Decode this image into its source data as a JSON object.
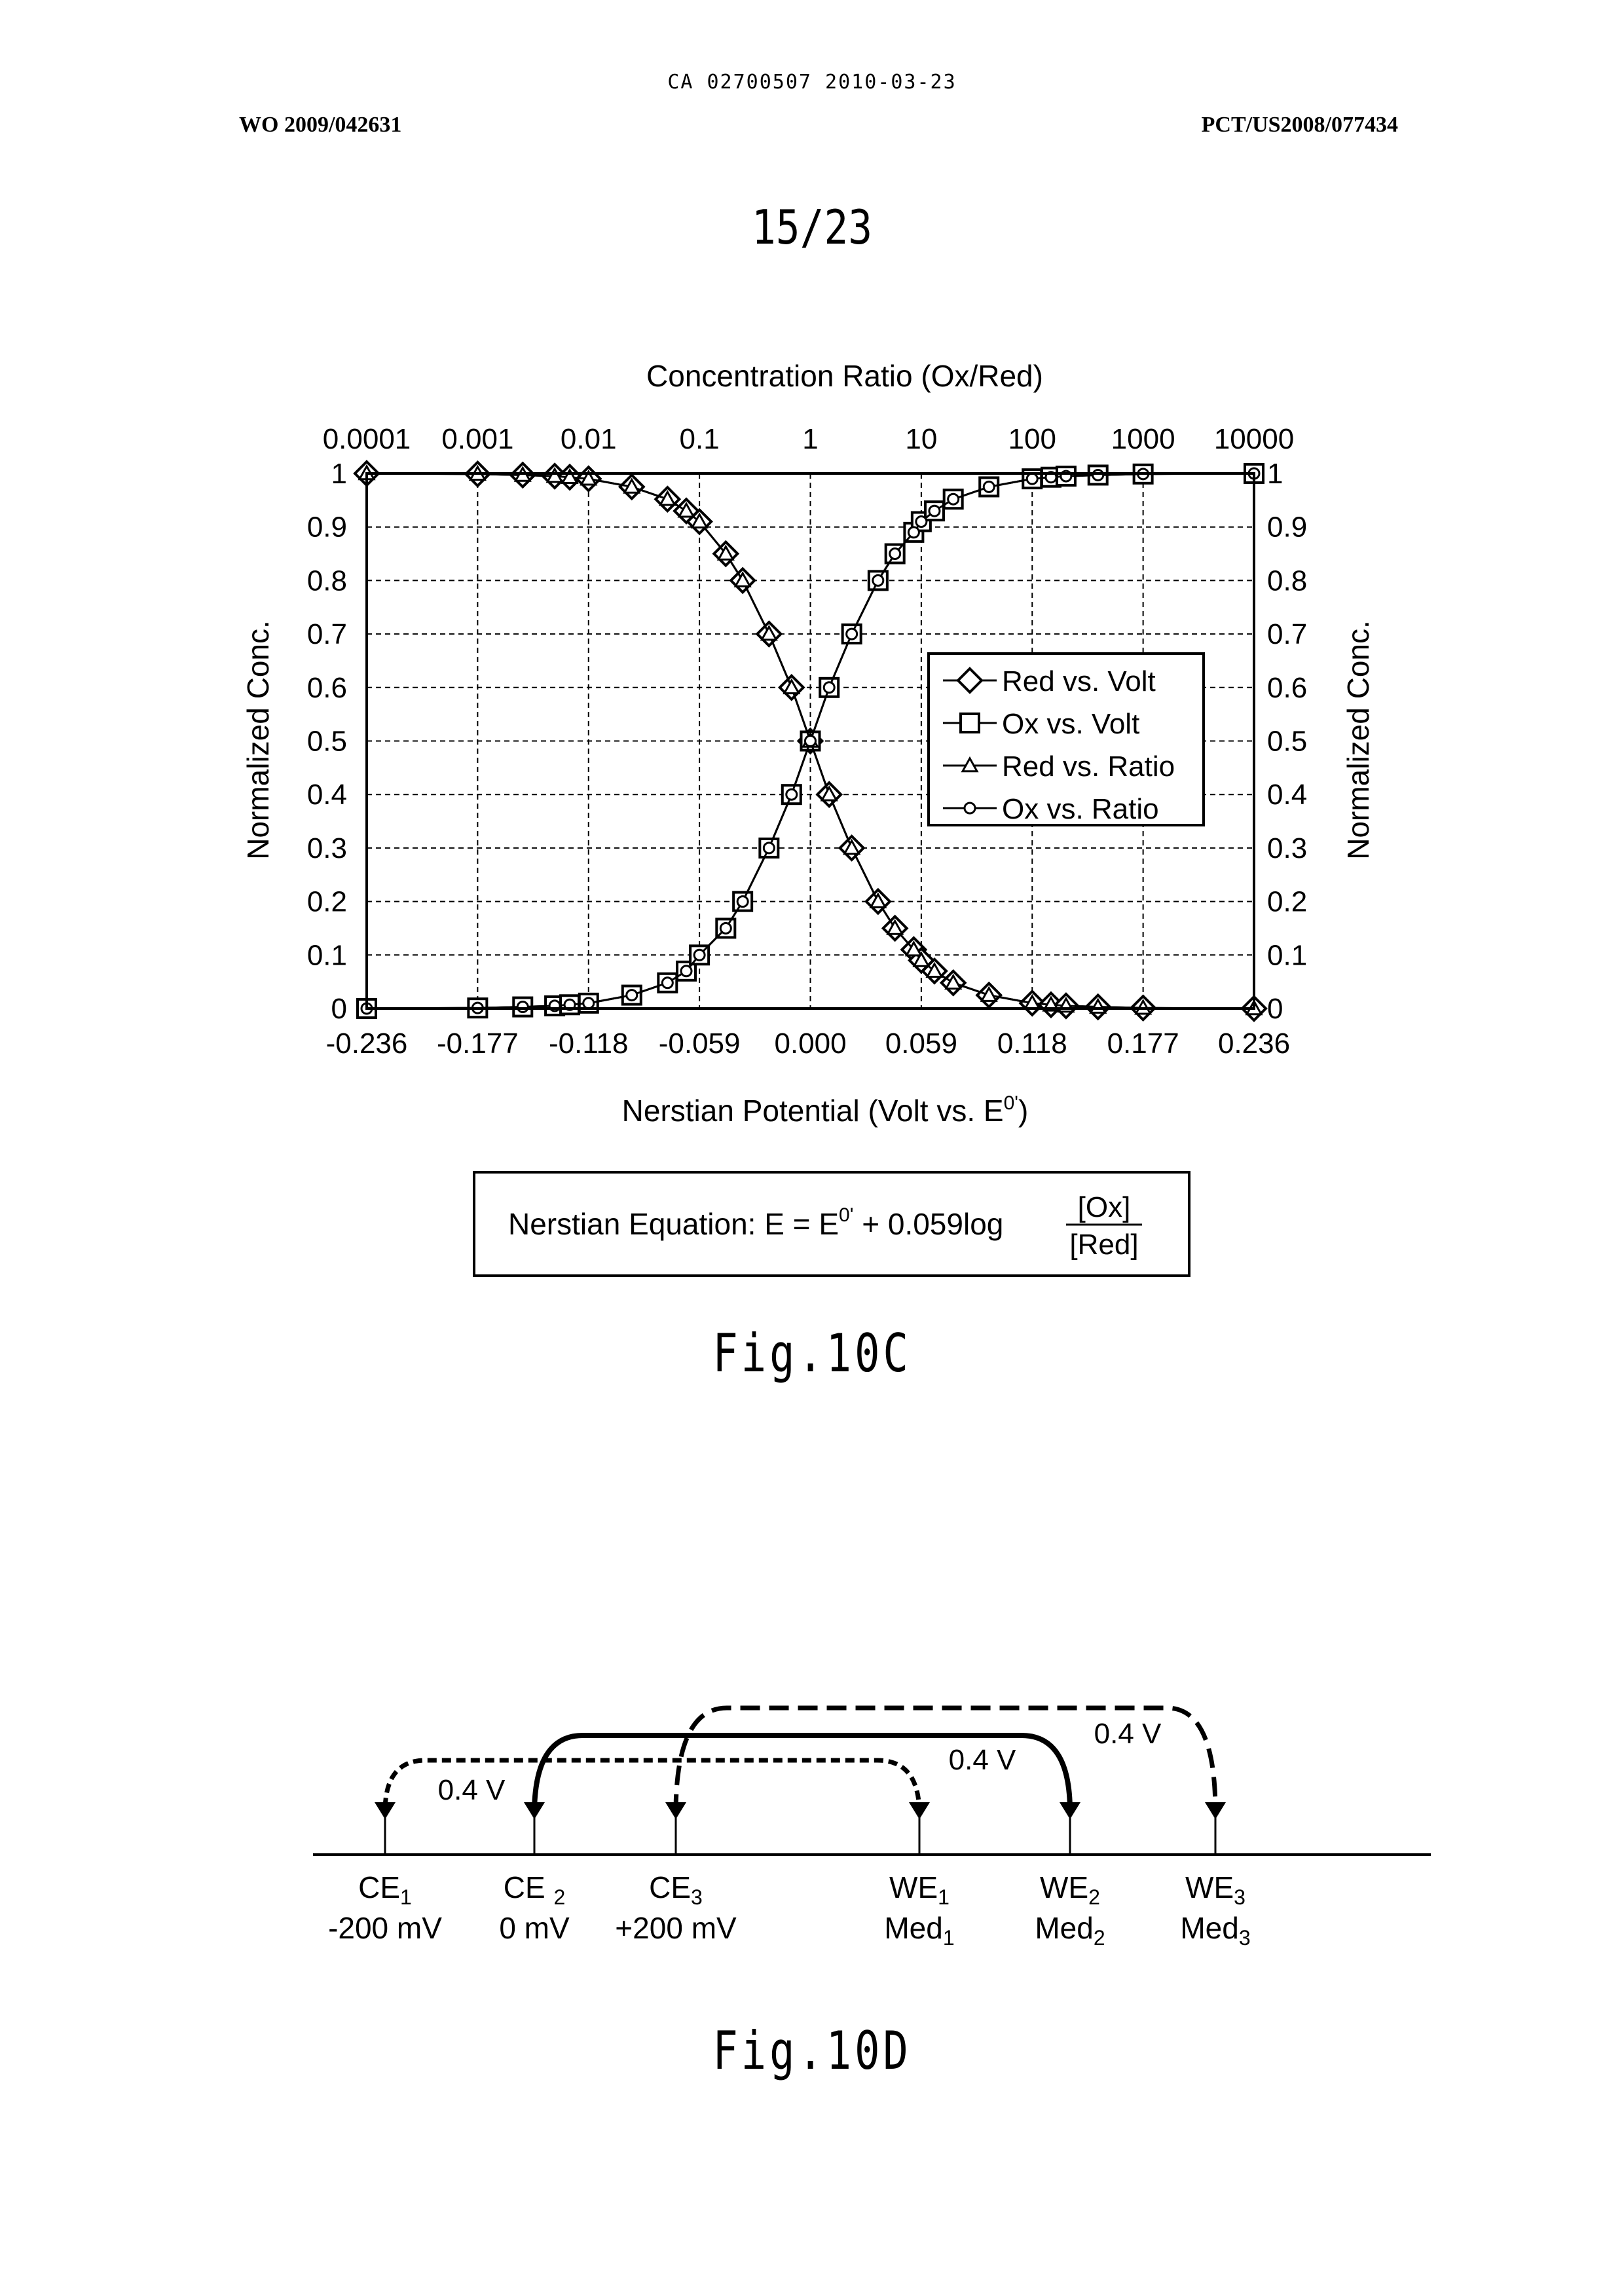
{
  "header": {
    "doc_id": "CA 02700507 2010-03-23",
    "left": "WO 2009/042631",
    "right": "PCT/US2008/077434",
    "page": "15/23"
  },
  "fig10c": {
    "label": "Fig.10C",
    "equation": {
      "prefix": "Nerstian Equation: E = E",
      "superscript": "0'",
      "middle": " + 0.059log",
      "numerator": "[Ox]",
      "denominator": "[Red]"
    }
  },
  "chart_data": {
    "type": "line",
    "title": "",
    "top_axis_label": "Concentration Ratio (Ox/Red)",
    "top_axis_scale": "log",
    "top_ticks": [
      "0.0001",
      "0.001",
      "0.01",
      "0.1",
      "1",
      "10",
      "100",
      "1000",
      "10000"
    ],
    "xlabel": "Nerstian Potential (Volt vs. E",
    "xlabel_superscript": "0'",
    "xlabel_suffix": ")",
    "x_ticks": [
      "-0.236",
      "-0.177",
      "-0.118",
      "-0.059",
      "0.000",
      "0.059",
      "0.118",
      "0.177",
      "0.236"
    ],
    "xlim": [
      -0.236,
      0.236
    ],
    "ylabel": "Normalized Conc.",
    "y2label": "Normalized Conc.",
    "y_ticks": [
      "0",
      "0.1",
      "0.2",
      "0.3",
      "0.4",
      "0.5",
      "0.6",
      "0.7",
      "0.8",
      "0.9",
      "1"
    ],
    "ylim": [
      0,
      1
    ],
    "grid": true,
    "legend_position": "right-center",
    "series": [
      {
        "name": "Red vs. Volt",
        "marker": "diamond",
        "x": [
          -0.236,
          -0.177,
          -0.153,
          -0.136,
          -0.128,
          -0.118,
          -0.095,
          -0.076,
          -0.066,
          -0.059,
          -0.045,
          -0.036,
          -0.022,
          -0.01,
          0.0,
          0.01,
          0.022,
          0.036,
          0.045,
          0.055,
          0.059,
          0.066,
          0.076,
          0.095,
          0.118,
          0.128,
          0.136,
          0.153,
          0.177,
          0.236
        ],
        "y": [
          1.0,
          0.999,
          0.997,
          0.995,
          0.993,
          0.99,
          0.975,
          0.952,
          0.93,
          0.91,
          0.85,
          0.8,
          0.7,
          0.6,
          0.5,
          0.4,
          0.3,
          0.2,
          0.15,
          0.11,
          0.09,
          0.07,
          0.048,
          0.025,
          0.01,
          0.007,
          0.005,
          0.003,
          0.001,
          0.0
        ]
      },
      {
        "name": "Ox vs. Volt",
        "marker": "square",
        "x": [
          -0.236,
          -0.177,
          -0.153,
          -0.136,
          -0.128,
          -0.118,
          -0.095,
          -0.076,
          -0.066,
          -0.059,
          -0.045,
          -0.036,
          -0.022,
          -0.01,
          0.0,
          0.01,
          0.022,
          0.036,
          0.045,
          0.055,
          0.059,
          0.066,
          0.076,
          0.095,
          0.118,
          0.128,
          0.136,
          0.153,
          0.177,
          0.236
        ],
        "y": [
          0.0,
          0.001,
          0.003,
          0.005,
          0.007,
          0.01,
          0.025,
          0.048,
          0.07,
          0.1,
          0.15,
          0.2,
          0.3,
          0.4,
          0.5,
          0.6,
          0.7,
          0.8,
          0.85,
          0.89,
          0.91,
          0.93,
          0.952,
          0.975,
          0.99,
          0.993,
          0.995,
          0.997,
          0.999,
          1.0
        ]
      },
      {
        "name": "Red vs. Ratio",
        "marker": "triangle",
        "x": [
          -0.236,
          -0.177,
          -0.153,
          -0.136,
          -0.128,
          -0.118,
          -0.095,
          -0.076,
          -0.066,
          -0.059,
          -0.045,
          -0.036,
          -0.022,
          -0.01,
          0.0,
          0.01,
          0.022,
          0.036,
          0.045,
          0.055,
          0.059,
          0.066,
          0.076,
          0.095,
          0.118,
          0.128,
          0.136,
          0.153,
          0.177,
          0.236
        ],
        "y": [
          1.0,
          0.999,
          0.997,
          0.995,
          0.993,
          0.99,
          0.975,
          0.952,
          0.93,
          0.91,
          0.85,
          0.8,
          0.7,
          0.6,
          0.5,
          0.4,
          0.3,
          0.2,
          0.15,
          0.11,
          0.09,
          0.07,
          0.048,
          0.025,
          0.01,
          0.007,
          0.005,
          0.003,
          0.001,
          0.0
        ]
      },
      {
        "name": "Ox vs. Ratio",
        "marker": "circle",
        "x": [
          -0.236,
          -0.177,
          -0.153,
          -0.136,
          -0.128,
          -0.118,
          -0.095,
          -0.076,
          -0.066,
          -0.059,
          -0.045,
          -0.036,
          -0.022,
          -0.01,
          0.0,
          0.01,
          0.022,
          0.036,
          0.045,
          0.055,
          0.059,
          0.066,
          0.076,
          0.095,
          0.118,
          0.128,
          0.136,
          0.153,
          0.177,
          0.236
        ],
        "y": [
          0.0,
          0.001,
          0.003,
          0.005,
          0.007,
          0.01,
          0.025,
          0.048,
          0.07,
          0.1,
          0.15,
          0.2,
          0.3,
          0.4,
          0.5,
          0.6,
          0.7,
          0.8,
          0.85,
          0.89,
          0.91,
          0.93,
          0.952,
          0.975,
          0.99,
          0.993,
          0.995,
          0.997,
          0.999,
          1.0
        ]
      }
    ]
  },
  "fig10d": {
    "label": "Fig.10D",
    "ticks": [
      {
        "main": "CE",
        "sub": "1",
        "value": "-200 mV"
      },
      {
        "main": "CE ",
        "sub": "2",
        "value": "0 mV"
      },
      {
        "main": "CE",
        "sub": "3",
        "value": "+200 mV"
      },
      {
        "main": "WE",
        "sub": "1",
        "value": "Med",
        "value_sub": "1"
      },
      {
        "main": "WE",
        "sub": "2",
        "value": "Med",
        "value_sub": "2"
      },
      {
        "main": "WE",
        "sub": "3",
        "value": "Med",
        "value_sub": "3"
      }
    ],
    "arrow_labels": [
      "0.4 V",
      "0.4 V",
      "0.4 V"
    ]
  }
}
